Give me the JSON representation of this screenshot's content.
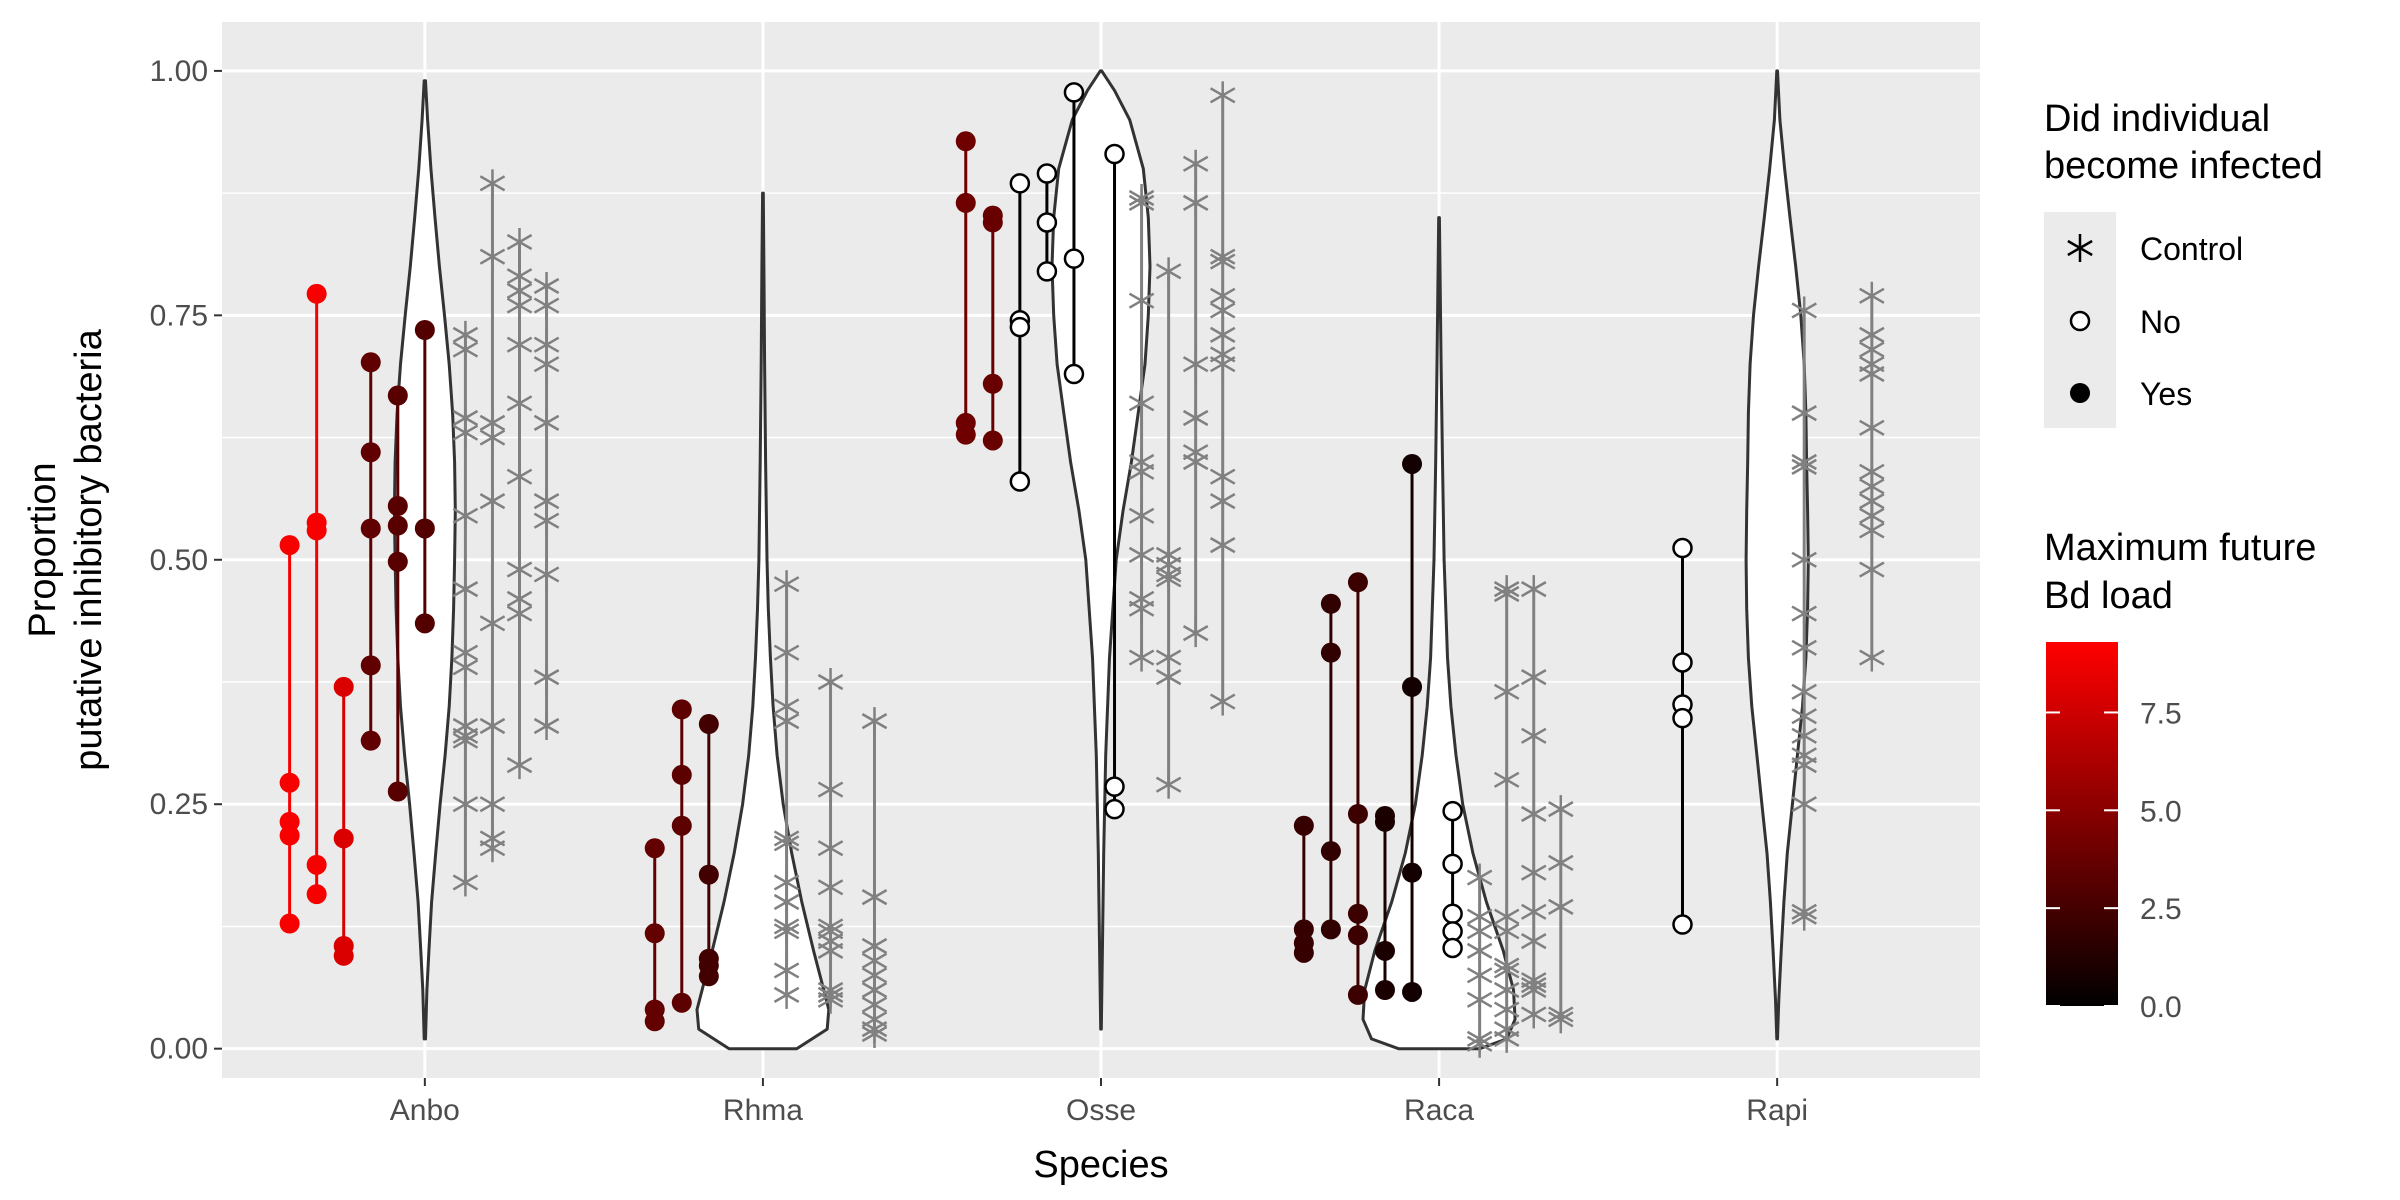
{
  "chart_data": {
    "type": "violin",
    "xlabel": "Species",
    "ylabel_lines": [
      "Proportion",
      "putative inhibitory bacteria"
    ],
    "categories": [
      "Anbo",
      "Rhma",
      "Osse",
      "Raca",
      "Rapi"
    ],
    "ylim": [
      -0.03,
      1.05
    ],
    "yticks": [
      0.0,
      0.25,
      0.5,
      0.75,
      1.0
    ],
    "ytick_labels": [
      "0.00",
      "0.25",
      "0.50",
      "0.75",
      "1.00"
    ],
    "grid": true,
    "legend_placement": "right",
    "colors": {
      "panel": "#ebebeb",
      "grid": "#ffffff",
      "control": "#808080",
      "outline": "#333333",
      "low": "#000000",
      "high": "#ff0000"
    },
    "legend_shape": {
      "title_lines": [
        "Did individual",
        "become infected"
      ],
      "items": [
        {
          "label": "Control",
          "shape": "asterisk"
        },
        {
          "label": "No",
          "shape": "open-circle"
        },
        {
          "label": "Yes",
          "shape": "filled-circle"
        }
      ]
    },
    "legend_color": {
      "title_lines": [
        "Maximum future",
        "Bd load"
      ],
      "min": 0,
      "max": 9.3,
      "ticks": [
        0.0,
        2.5,
        5.0,
        7.5
      ],
      "tick_labels": [
        "0.0",
        "2.5",
        "5.0",
        "7.5"
      ]
    },
    "violins": [
      {
        "category": "Anbo",
        "ymin": 0.01,
        "ymax": 0.99,
        "profile": [
          [
            0.01,
            0.002
          ],
          [
            0.06,
            0.006
          ],
          [
            0.1,
            0.012
          ],
          [
            0.15,
            0.02
          ],
          [
            0.2,
            0.032
          ],
          [
            0.25,
            0.045
          ],
          [
            0.3,
            0.06
          ],
          [
            0.35,
            0.072
          ],
          [
            0.4,
            0.08
          ],
          [
            0.45,
            0.085
          ],
          [
            0.5,
            0.088
          ],
          [
            0.55,
            0.09
          ],
          [
            0.6,
            0.088
          ],
          [
            0.65,
            0.082
          ],
          [
            0.7,
            0.072
          ],
          [
            0.75,
            0.058
          ],
          [
            0.8,
            0.043
          ],
          [
            0.85,
            0.03
          ],
          [
            0.9,
            0.018
          ],
          [
            0.95,
            0.008
          ],
          [
            0.99,
            0.002
          ]
        ]
      },
      {
        "category": "Rhma",
        "ymin": 0.0,
        "ymax": 0.875,
        "profile": [
          [
            0.0,
            0.1
          ],
          [
            0.02,
            0.19
          ],
          [
            0.04,
            0.195
          ],
          [
            0.06,
            0.18
          ],
          [
            0.1,
            0.15
          ],
          [
            0.15,
            0.115
          ],
          [
            0.2,
            0.085
          ],
          [
            0.25,
            0.06
          ],
          [
            0.3,
            0.042
          ],
          [
            0.35,
            0.03
          ],
          [
            0.4,
            0.022
          ],
          [
            0.45,
            0.016
          ],
          [
            0.5,
            0.012
          ],
          [
            0.6,
            0.008
          ],
          [
            0.7,
            0.005
          ],
          [
            0.8,
            0.003
          ],
          [
            0.875,
            0.001
          ]
        ]
      },
      {
        "category": "Osse",
        "ymin": 0.02,
        "ymax": 1.0,
        "profile": [
          [
            0.02,
            0.001
          ],
          [
            0.1,
            0.004
          ],
          [
            0.2,
            0.008
          ],
          [
            0.3,
            0.014
          ],
          [
            0.4,
            0.025
          ],
          [
            0.5,
            0.045
          ],
          [
            0.55,
            0.065
          ],
          [
            0.6,
            0.09
          ],
          [
            0.65,
            0.11
          ],
          [
            0.7,
            0.13
          ],
          [
            0.75,
            0.14
          ],
          [
            0.8,
            0.145
          ],
          [
            0.85,
            0.14
          ],
          [
            0.9,
            0.125
          ],
          [
            0.95,
            0.085
          ],
          [
            0.98,
            0.04
          ],
          [
            1.0,
            0.002
          ]
        ]
      },
      {
        "category": "Raca",
        "ymin": 0.0,
        "ymax": 0.85,
        "profile": [
          [
            0.0,
            0.12
          ],
          [
            0.01,
            0.2
          ],
          [
            0.03,
            0.225
          ],
          [
            0.06,
            0.22
          ],
          [
            0.1,
            0.19
          ],
          [
            0.15,
            0.14
          ],
          [
            0.2,
            0.1
          ],
          [
            0.25,
            0.07
          ],
          [
            0.3,
            0.05
          ],
          [
            0.35,
            0.035
          ],
          [
            0.4,
            0.025
          ],
          [
            0.5,
            0.015
          ],
          [
            0.6,
            0.01
          ],
          [
            0.7,
            0.006
          ],
          [
            0.85,
            0.001
          ]
        ]
      },
      {
        "category": "Rapi",
        "ymin": 0.01,
        "ymax": 1.0,
        "profile": [
          [
            0.01,
            0.001
          ],
          [
            0.05,
            0.005
          ],
          [
            0.1,
            0.012
          ],
          [
            0.15,
            0.02
          ],
          [
            0.2,
            0.03
          ],
          [
            0.25,
            0.045
          ],
          [
            0.3,
            0.06
          ],
          [
            0.35,
            0.075
          ],
          [
            0.4,
            0.085
          ],
          [
            0.45,
            0.09
          ],
          [
            0.5,
            0.092
          ],
          [
            0.55,
            0.09
          ],
          [
            0.6,
            0.087
          ],
          [
            0.65,
            0.085
          ],
          [
            0.7,
            0.08
          ],
          [
            0.75,
            0.07
          ],
          [
            0.8,
            0.055
          ],
          [
            0.85,
            0.038
          ],
          [
            0.9,
            0.022
          ],
          [
            0.95,
            0.008
          ],
          [
            1.0,
            0.001
          ]
        ]
      }
    ],
    "individuals": [
      {
        "x": 0.6,
        "group": "Yes",
        "bd": 9.0,
        "values": [
          0.515,
          0.272,
          0.232,
          0.218,
          0.128
        ]
      },
      {
        "x": 0.68,
        "group": "Yes",
        "bd": 9.0,
        "values": [
          0.772,
          0.538,
          0.53,
          0.188,
          0.158
        ]
      },
      {
        "x": 0.76,
        "group": "Yes",
        "bd": 8.0,
        "values": [
          0.37,
          0.215,
          0.105,
          0.095
        ]
      },
      {
        "x": 0.84,
        "group": "Yes",
        "bd": 3.5,
        "values": [
          0.702,
          0.61,
          0.532,
          0.392,
          0.315
        ]
      },
      {
        "x": 0.92,
        "group": "Yes",
        "bd": 3.2,
        "values": [
          0.668,
          0.555,
          0.535,
          0.498,
          0.263
        ]
      },
      {
        "x": 1.0,
        "group": "Yes",
        "bd": 3.0,
        "values": [
          0.735,
          0.532,
          0.435
        ]
      },
      {
        "x": 1.12,
        "group": "Control",
        "values": [
          0.73,
          0.715,
          0.645,
          0.63,
          0.545,
          0.47,
          0.405,
          0.39,
          0.33,
          0.32,
          0.315,
          0.25,
          0.17
        ]
      },
      {
        "x": 1.2,
        "group": "Control",
        "values": [
          0.885,
          0.81,
          0.64,
          0.625,
          0.56,
          0.435,
          0.33,
          0.25,
          0.215,
          0.205
        ]
      },
      {
        "x": 1.28,
        "group": "Control",
        "values": [
          0.825,
          0.79,
          0.775,
          0.76,
          0.72,
          0.66,
          0.585,
          0.49,
          0.46,
          0.445,
          0.29
        ]
      },
      {
        "x": 1.36,
        "group": "Control",
        "values": [
          0.78,
          0.76,
          0.72,
          0.7,
          0.64,
          0.56,
          0.54,
          0.485,
          0.38,
          0.33
        ]
      },
      {
        "x": 1.68,
        "group": "Yes",
        "bd": 3.6,
        "values": [
          0.205,
          0.118,
          0.04,
          0.028
        ]
      },
      {
        "x": 1.76,
        "group": "Yes",
        "bd": 3.4,
        "values": [
          0.347,
          0.28,
          0.228,
          0.047
        ]
      },
      {
        "x": 1.84,
        "group": "Yes",
        "bd": 2.4,
        "values": [
          0.332,
          0.178,
          0.092,
          0.085,
          0.074
        ]
      },
      {
        "x": 2.07,
        "group": "Control",
        "values": [
          0.475,
          0.405,
          0.35,
          0.335,
          0.215,
          0.21,
          0.17,
          0.15,
          0.125,
          0.12,
          0.08,
          0.055
        ]
      },
      {
        "x": 2.2,
        "group": "Control",
        "values": [
          0.375,
          0.265,
          0.205,
          0.165,
          0.125,
          0.12,
          0.11,
          0.1,
          0.06,
          0.055,
          0.05
        ]
      },
      {
        "x": 2.33,
        "group": "Control",
        "values": [
          0.335,
          0.155,
          0.105,
          0.09,
          0.075,
          0.06,
          0.045,
          0.03,
          0.02,
          0.015
        ]
      },
      {
        "x": 2.6,
        "group": "Yes",
        "bd": 4.0,
        "values": [
          0.928,
          0.865,
          0.64,
          0.628
        ]
      },
      {
        "x": 2.68,
        "group": "Yes",
        "bd": 3.8,
        "values": [
          0.852,
          0.845,
          0.68,
          0.622
        ]
      },
      {
        "x": 2.76,
        "group": "No",
        "values": [
          0.885,
          0.745,
          0.738,
          0.58
        ]
      },
      {
        "x": 2.84,
        "group": "No",
        "values": [
          0.895,
          0.845,
          0.795
        ]
      },
      {
        "x": 2.92,
        "group": "No",
        "values": [
          0.978,
          0.808,
          0.69
        ]
      },
      {
        "x": 3.04,
        "group": "No",
        "values": [
          0.915,
          0.268,
          0.245
        ]
      },
      {
        "x": 3.12,
        "group": "Control",
        "values": [
          0.87,
          0.865,
          0.765,
          0.66,
          0.6,
          0.59,
          0.545,
          0.505,
          0.46,
          0.45,
          0.4
        ]
      },
      {
        "x": 3.2,
        "group": "Control",
        "values": [
          0.795,
          0.505,
          0.495,
          0.485,
          0.48,
          0.4,
          0.38,
          0.27
        ]
      },
      {
        "x": 3.28,
        "group": "Control",
        "values": [
          0.905,
          0.865,
          0.7,
          0.645,
          0.61,
          0.6,
          0.425
        ]
      },
      {
        "x": 3.36,
        "group": "Control",
        "values": [
          0.975,
          0.81,
          0.805,
          0.77,
          0.755,
          0.73,
          0.71,
          0.7,
          0.585,
          0.56,
          0.515,
          0.355
        ]
      },
      {
        "x": 3.6,
        "group": "Yes",
        "bd": 2.0,
        "values": [
          0.228,
          0.122,
          0.108,
          0.098
        ]
      },
      {
        "x": 3.68,
        "group": "Yes",
        "bd": 1.8,
        "values": [
          0.455,
          0.405,
          0.202,
          0.122
        ]
      },
      {
        "x": 3.76,
        "group": "Yes",
        "bd": 2.2,
        "values": [
          0.477,
          0.24,
          0.138,
          0.116,
          0.055
        ]
      },
      {
        "x": 3.84,
        "group": "Yes",
        "bd": 1.0,
        "values": [
          0.238,
          0.232,
          0.1,
          0.06
        ]
      },
      {
        "x": 3.92,
        "group": "Yes",
        "bd": 0.7,
        "values": [
          0.598,
          0.37,
          0.18,
          0.058
        ]
      },
      {
        "x": 4.04,
        "group": "No",
        "values": [
          0.243,
          0.189,
          0.138,
          0.12,
          0.103
        ]
      },
      {
        "x": 4.12,
        "group": "Control",
        "values": [
          0.175,
          0.135,
          0.12,
          0.1,
          0.075,
          0.05,
          0.01,
          0.005
        ]
      },
      {
        "x": 4.2,
        "group": "Control",
        "values": [
          0.47,
          0.465,
          0.365,
          0.275,
          0.135,
          0.12,
          0.085,
          0.08,
          0.06,
          0.04,
          0.02,
          0.01
        ]
      },
      {
        "x": 4.28,
        "group": "Control",
        "values": [
          0.47,
          0.38,
          0.32,
          0.24,
          0.18,
          0.14,
          0.11,
          0.07,
          0.065,
          0.06,
          0.035
        ]
      },
      {
        "x": 4.36,
        "group": "Control",
        "values": [
          0.245,
          0.19,
          0.145,
          0.035,
          0.03
        ]
      },
      {
        "x": 4.72,
        "group": "No",
        "values": [
          0.512,
          0.395,
          0.352,
          0.338,
          0.127
        ]
      },
      {
        "x": 5.08,
        "group": "Control",
        "values": [
          0.755,
          0.65,
          0.6,
          0.595,
          0.5,
          0.445,
          0.41,
          0.365,
          0.34,
          0.32,
          0.3,
          0.29,
          0.25,
          0.14,
          0.135
        ]
      },
      {
        "x": 5.28,
        "group": "Control",
        "values": [
          0.77,
          0.73,
          0.715,
          0.7,
          0.69,
          0.635,
          0.59,
          0.575,
          0.56,
          0.545,
          0.53,
          0.49,
          0.4
        ]
      }
    ]
  }
}
